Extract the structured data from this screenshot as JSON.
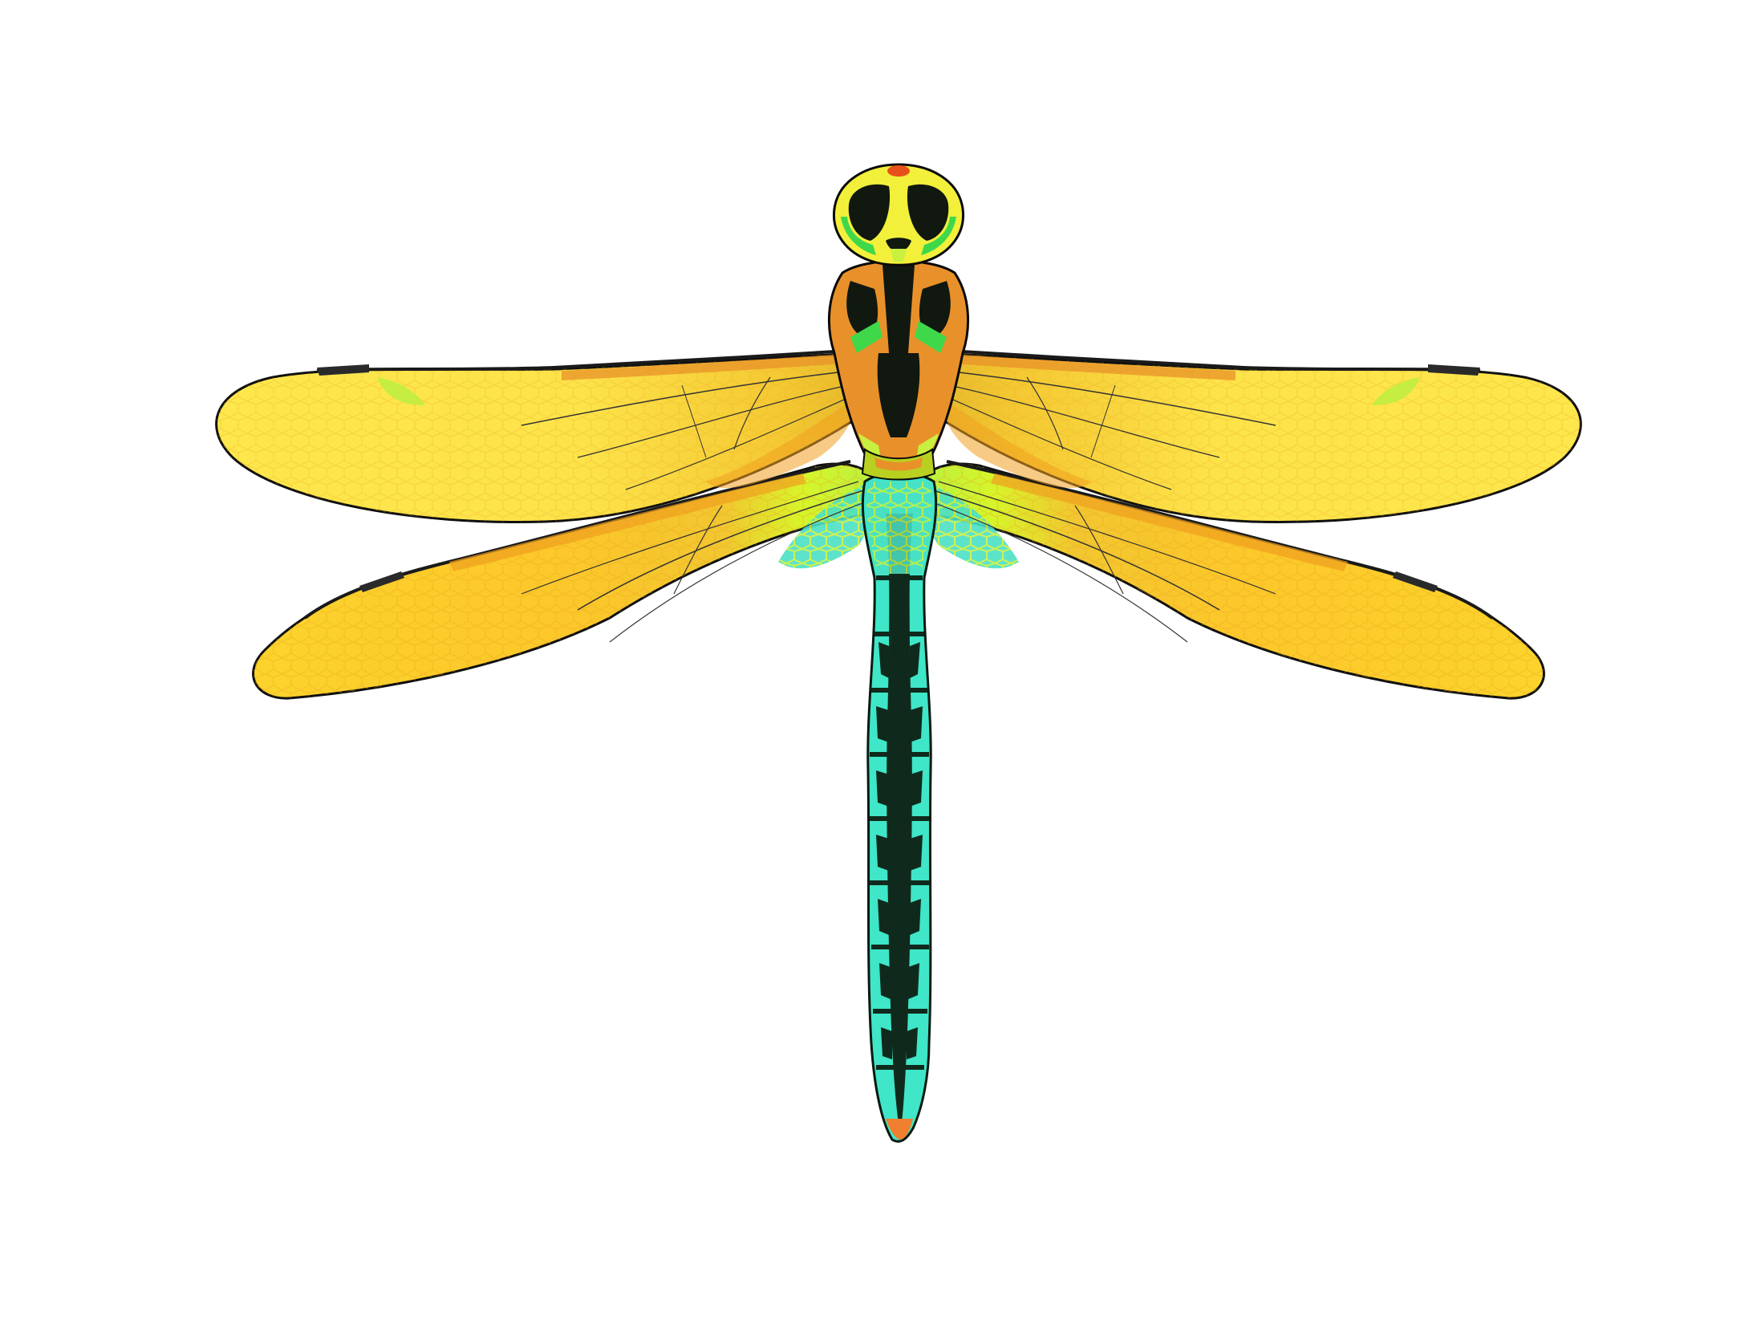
{
  "image": {
    "subject": "dragonfly",
    "background_color": "#ffffff"
  },
  "palette": {
    "wing_light": "#fde74c",
    "wing_mid": "#fcd22a",
    "wing_deep": "#f7b81e",
    "wing_orange": "#f0a020",
    "wing_green": "#d6f52a",
    "venation": "#1a1a1a",
    "pterostigma": "#2a2a2a",
    "cell_green": "#c8f040",
    "cell_cyan": "#4be0c4",
    "abdomen": "#3fe6c8",
    "abdomen_dark": "#0f2a1c",
    "thorax_orange": "#e8912a",
    "thorax_green": "#3fd84a",
    "head_yellow": "#f2f03a",
    "eye_dark": "#101810",
    "tip_orange": "#f08030"
  }
}
